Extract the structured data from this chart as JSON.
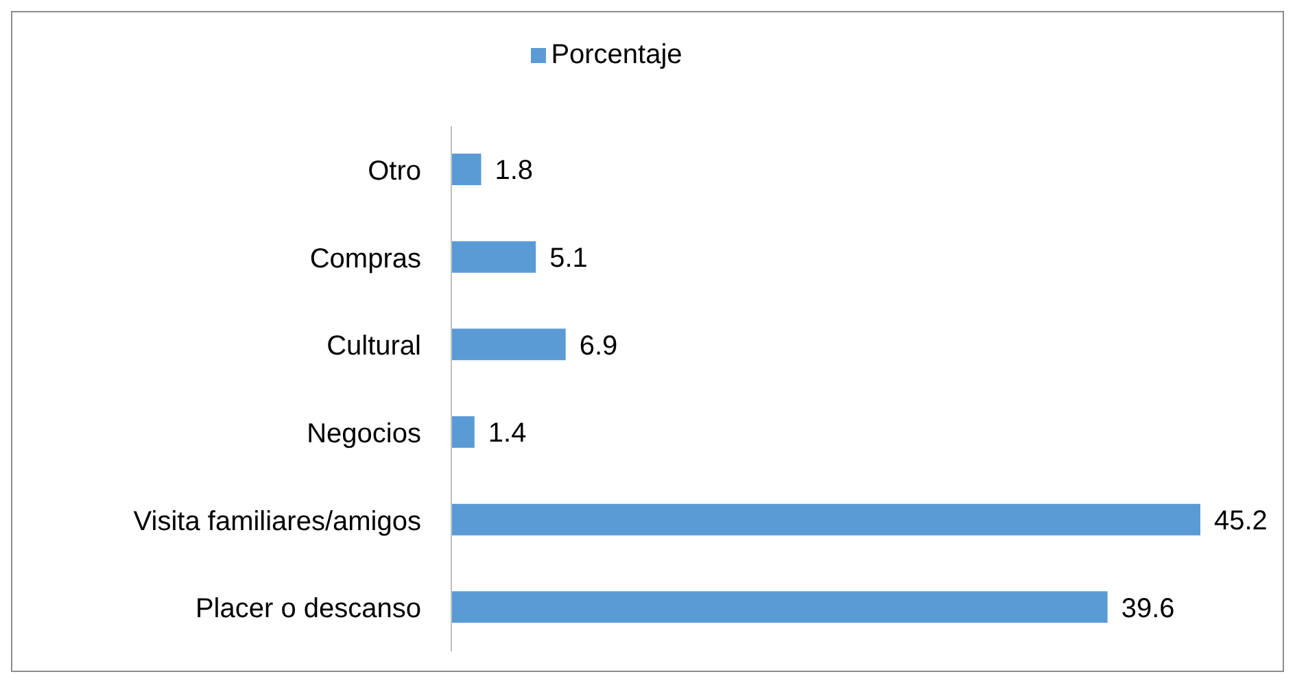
{
  "chart_data": {
    "type": "bar",
    "orientation": "horizontal",
    "categories": [
      "Otro",
      "Compras",
      "Cultural",
      "Negocios",
      "Visita familiares/amigos",
      "Placer o descanso"
    ],
    "series": [
      {
        "name": "Porcentaje",
        "color": "#5b9bd5",
        "values": [
          1.8,
          5.1,
          6.9,
          1.4,
          45.2,
          39.6
        ]
      }
    ],
    "data_labels": true,
    "legend": "top",
    "grid": false
  }
}
